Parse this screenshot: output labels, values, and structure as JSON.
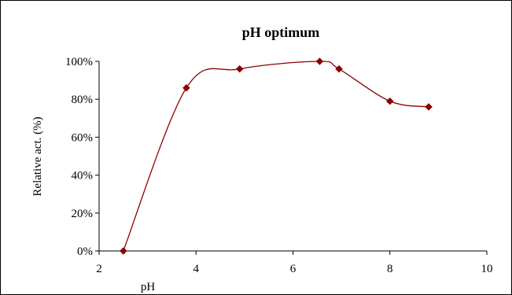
{
  "chart_data": {
    "type": "line",
    "title": "pH optimum",
    "xlabel": "pH",
    "ylabel": "Relative act. (%)",
    "xlim": [
      2,
      10
    ],
    "ylim": [
      0,
      100
    ],
    "x_ticks": [
      2,
      4,
      6,
      8,
      10
    ],
    "x_tick_labels": [
      "2",
      "4",
      "6",
      "8",
      "10"
    ],
    "y_ticks": [
      0,
      20,
      40,
      60,
      80,
      100
    ],
    "y_tick_labels": [
      "0%",
      "20%",
      "40%",
      "60%",
      "80%",
      "100%"
    ],
    "grid": false,
    "legend": "none",
    "series": [
      {
        "x": [
          2.5,
          3.8,
          4.9,
          6.55,
          6.95,
          8.0,
          8.8
        ],
        "y": [
          0,
          86,
          96,
          100,
          96,
          79,
          76
        ],
        "color": "#8b0000",
        "marker": "diamond",
        "smooth": true
      }
    ]
  }
}
